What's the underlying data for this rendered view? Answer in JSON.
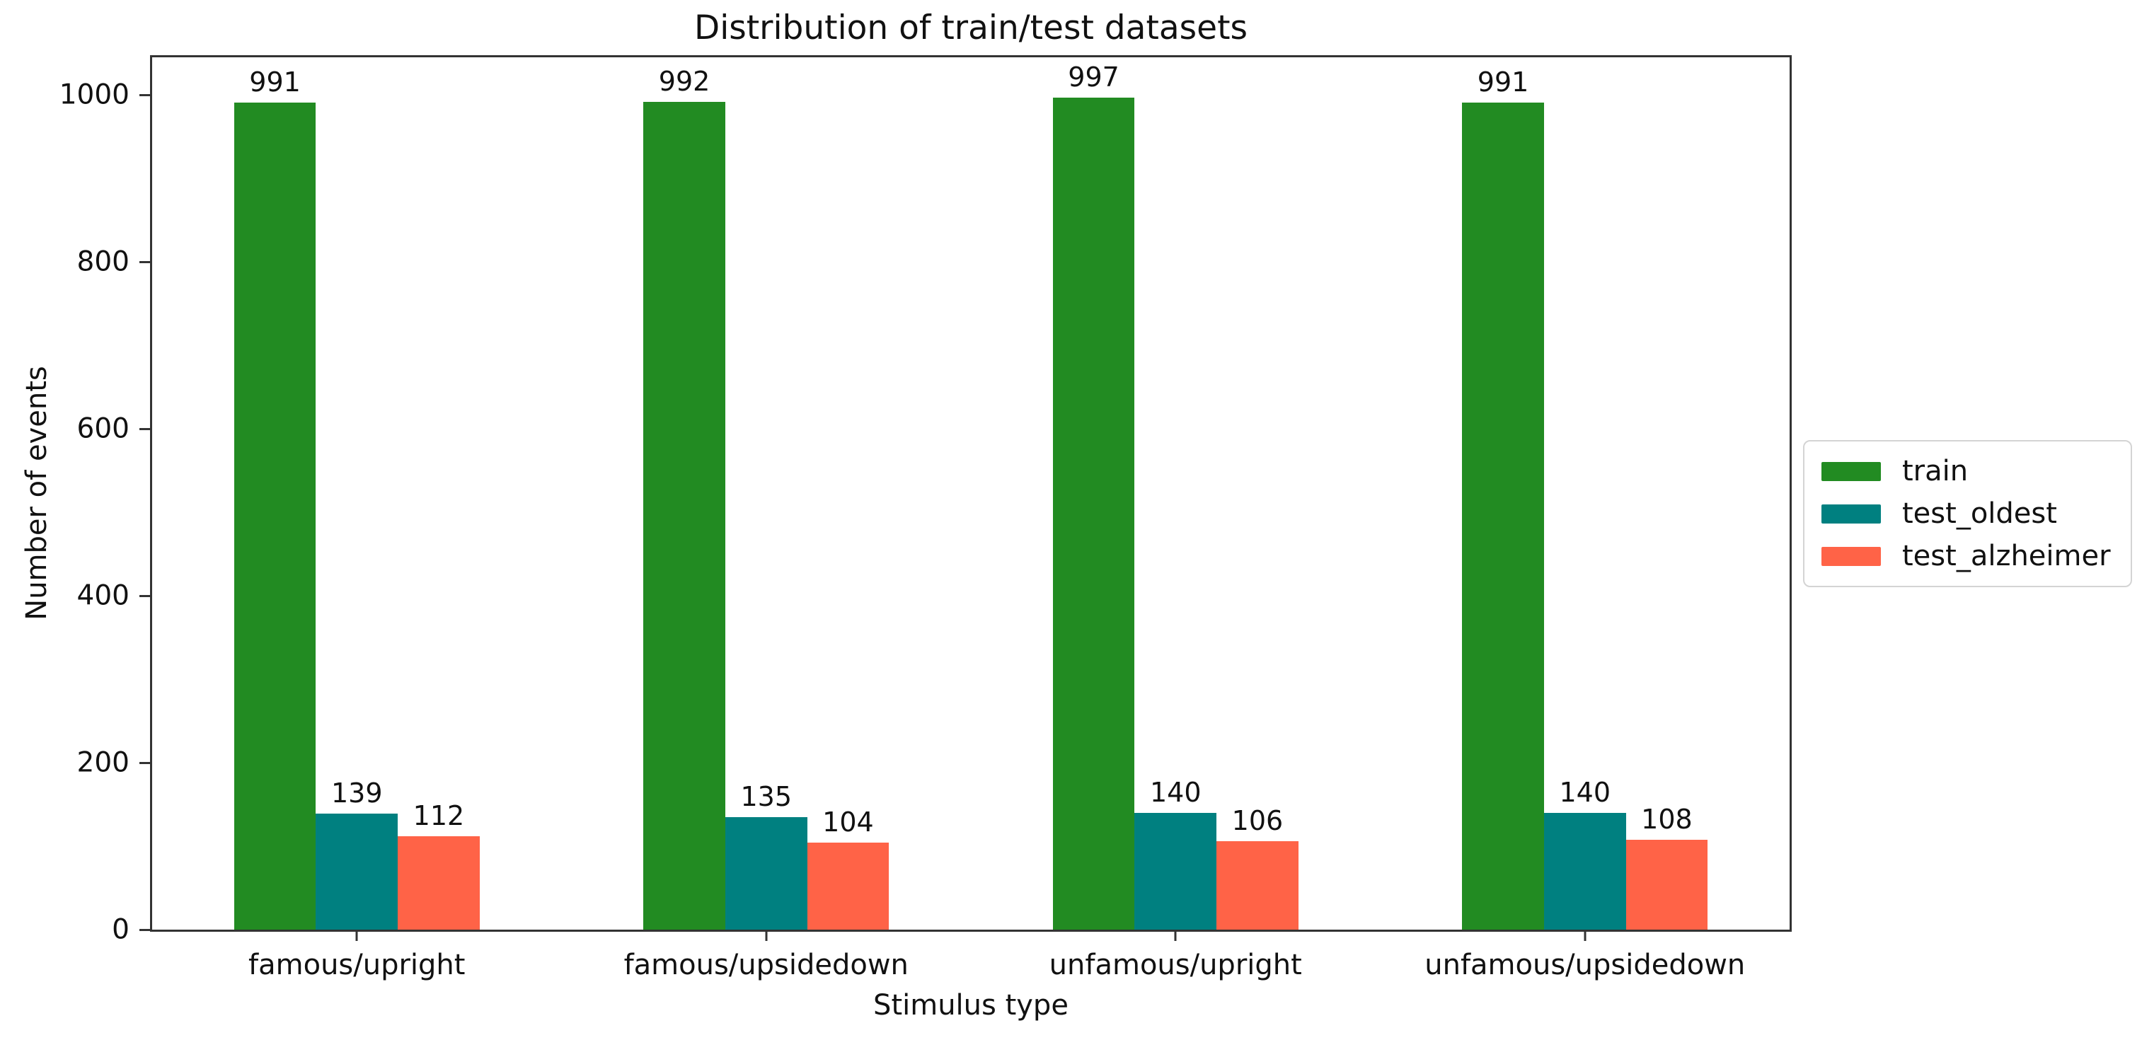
{
  "chart_data": {
    "type": "bar",
    "title": "Distribution of train/test datasets",
    "xlabel": "Stimulus type",
    "ylabel": "Number of events",
    "categories": [
      "famous/upright",
      "famous/upsidedown",
      "unfamous/upright",
      "unfamous/upsidedown"
    ],
    "series": [
      {
        "name": "train",
        "color": "#228b22",
        "values": [
          991,
          992,
          997,
          991
        ]
      },
      {
        "name": "test_oldest",
        "color": "#008080",
        "values": [
          139,
          135,
          140,
          140
        ]
      },
      {
        "name": "test_alzheimer",
        "color": "#ff6347",
        "values": [
          112,
          104,
          106,
          108
        ]
      }
    ],
    "yticks": [
      0,
      200,
      400,
      600,
      800,
      1000
    ],
    "ylim": [
      0,
      1045
    ],
    "grid": false,
    "bar_value_labels": true,
    "legend_position": "right-outside"
  }
}
